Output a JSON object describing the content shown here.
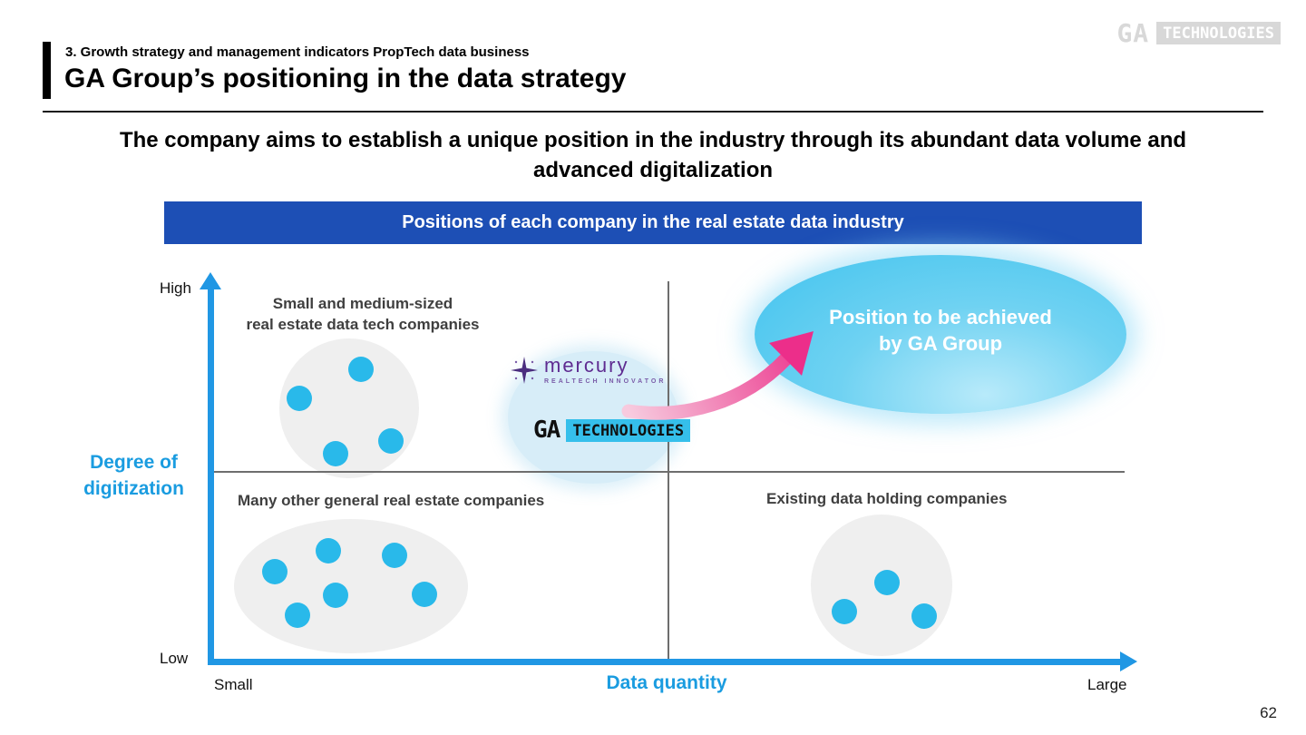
{
  "brand": {
    "ga": "GA",
    "technologies": "TECHNOLOGIES"
  },
  "header": {
    "eyebrow": "3. Growth strategy and management indicators PropTech data business",
    "title": "GA Group’s positioning in the data strategy"
  },
  "subtitle": "The company aims to establish a unique position in the industry through its abundant data volume and advanced digitalization",
  "banner": {
    "label": "Positions of each company in the real estate data industry"
  },
  "axes": {
    "y_title": "Degree of\ndigitization",
    "y_high": "High",
    "y_low": "Low",
    "x_title": "Data quantity",
    "x_min": "Small",
    "x_max": "Large"
  },
  "quadrants": {
    "top_left": "Small and medium-sized\nreal estate data tech companies",
    "bottom_left": "Many other general real estate companies",
    "bottom_right": "Existing data holding companies"
  },
  "target": {
    "label": "Position to be achieved\nby GA Group"
  },
  "logos": {
    "mercury": {
      "name": "mercury",
      "tagline": "REALTECH INNOVATOR"
    },
    "ga": {
      "ga": "GA",
      "technologies": "TECHNOLOGIES"
    }
  },
  "page_number": "62",
  "colors": {
    "banner_blue": "#1d4fb5",
    "axis_blue": "#2097e4",
    "accent_text_blue": "#1a9ce0",
    "dot_cyan": "#29b9ea",
    "target_cyan": "#41c3ee",
    "arrow_pink": "#ec2e8a",
    "mercury_purple": "#5e2c91",
    "logo_cyan": "#35bfeb",
    "group_blob_gray": "#efefef",
    "divider_gray": "#6e6e6e"
  },
  "chart_data": {
    "type": "scatter",
    "title": "Positions of each company in the real estate data industry",
    "xlabel": "Data quantity",
    "ylabel": "Degree of digitization",
    "x_axis_range": [
      "Small",
      "Large"
    ],
    "y_axis_range": [
      "Low",
      "High"
    ],
    "grid": false,
    "groups": [
      {
        "name": "Small and medium-sized real estate data tech companies",
        "quadrant": "top-left",
        "dots": [
          [
            398,
            407
          ],
          [
            330,
            439
          ],
          [
            370,
            500
          ],
          [
            431,
            486
          ]
        ]
      },
      {
        "name": "Many other general real estate companies",
        "quadrant": "bottom-left",
        "dots": [
          [
            303,
            630
          ],
          [
            362,
            607
          ],
          [
            435,
            612
          ],
          [
            370,
            656
          ],
          [
            328,
            678
          ],
          [
            468,
            655
          ]
        ]
      },
      {
        "name": "Existing data holding companies",
        "quadrant": "bottom-right",
        "dots": [
          [
            978,
            642
          ],
          [
            931,
            674
          ],
          [
            1019,
            679
          ]
        ]
      },
      {
        "name": "Position to be achieved by GA Group",
        "quadrant": "top-right",
        "dots": []
      }
    ]
  }
}
